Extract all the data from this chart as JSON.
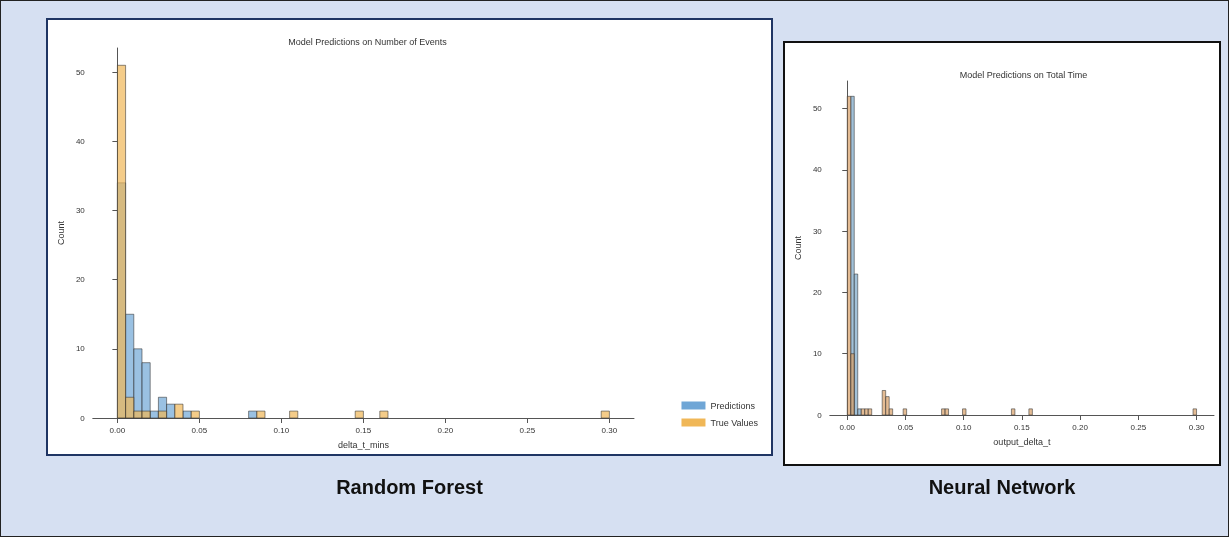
{
  "chart_data": [
    {
      "type": "histogram",
      "title": "Model Predictions on Number of Events",
      "xlabel": "delta_t_mins",
      "ylabel": "Count",
      "annotations": [
        "Random Forest"
      ],
      "xlim": [
        -0.015,
        0.315
      ],
      "xticks": [
        {
          "value": 0,
          "label": "0.00"
        },
        {
          "value": 0.05,
          "label": "0.05"
        },
        {
          "value": 0.1,
          "label": "0.10"
        },
        {
          "value": 0.15,
          "label": "0.15"
        },
        {
          "value": 0.2,
          "label": "0.20"
        },
        {
          "value": 0.25,
          "label": "0.25"
        },
        {
          "value": 0.3,
          "label": "0.30"
        }
      ],
      "ylim": [
        0,
        53.5
      ],
      "yticks": [
        0,
        10,
        20,
        30,
        40,
        50
      ],
      "legend": "bottom right",
      "bins": [
        0,
        0.005,
        0.01,
        0.015,
        0.02,
        0.025,
        0.03,
        0.035,
        0.04,
        0.045,
        0.05,
        0.055,
        0.06,
        0.065,
        0.07,
        0.075,
        0.08,
        0.085,
        0.09,
        0.095,
        0.1,
        0.105,
        0.11,
        0.115,
        0.12,
        0.125,
        0.13,
        0.135,
        0.14,
        0.145,
        0.15,
        0.155,
        0.16,
        0.165,
        0.17,
        0.175,
        0.18,
        0.185,
        0.19,
        0.195,
        0.2,
        0.205,
        0.21,
        0.215,
        0.22,
        0.225,
        0.23,
        0.235,
        0.24,
        0.245,
        0.25,
        0.255,
        0.26,
        0.265,
        0.27,
        0.275,
        0.28,
        0.285,
        0.29,
        0.295,
        0.3
      ],
      "series": [
        {
          "name": "Predictions",
          "color": "#6fa6d6",
          "values": [
            34,
            15,
            10,
            8,
            1,
            3,
            2,
            0,
            1,
            0,
            0,
            0,
            0,
            0,
            0,
            0,
            1,
            0,
            0,
            0,
            0,
            0,
            0,
            0,
            0,
            0,
            0,
            0,
            0,
            0,
            0,
            0,
            0,
            0,
            0,
            0,
            0,
            0,
            0,
            0,
            0,
            0,
            0,
            0,
            0,
            0,
            0,
            0,
            0,
            0,
            0,
            0,
            0,
            0,
            0,
            0,
            0,
            0,
            0,
            0
          ]
        },
        {
          "name": "True Values",
          "color": "#f0b757",
          "values": [
            51,
            3,
            1,
            1,
            0,
            1,
            0,
            2,
            0,
            1,
            0,
            0,
            0,
            0,
            0,
            0,
            0,
            1,
            0,
            0,
            0,
            1,
            0,
            0,
            0,
            0,
            0,
            0,
            0,
            1,
            0,
            0,
            1,
            0,
            0,
            0,
            0,
            0,
            0,
            0,
            0,
            0,
            0,
            0,
            0,
            0,
            0,
            0,
            0,
            0,
            0,
            0,
            0,
            0,
            0,
            0,
            0,
            0,
            0,
            1
          ]
        }
      ]
    },
    {
      "type": "histogram",
      "title": "Model Predictions on Total Time",
      "xlabel": "output_delta_t",
      "ylabel": "Count",
      "annotations": [
        "Neural Network"
      ],
      "xlim": [
        -0.015,
        0.315
      ],
      "xticks": [
        {
          "value": 0,
          "label": "0.00"
        },
        {
          "value": 0.05,
          "label": "0.05"
        },
        {
          "value": 0.1,
          "label": "0.10"
        },
        {
          "value": 0.15,
          "label": "0.15"
        },
        {
          "value": 0.2,
          "label": "0.20"
        },
        {
          "value": 0.25,
          "label": "0.25"
        },
        {
          "value": 0.3,
          "label": "0.30"
        }
      ],
      "ylim": [
        0,
        54.5
      ],
      "yticks": [
        0,
        10,
        20,
        30,
        40,
        50
      ],
      "bins": [
        0,
        0.003,
        0.006,
        0.009,
        0.012,
        0.015,
        0.018,
        0.021,
        0.024,
        0.027,
        0.03,
        0.033,
        0.036,
        0.039,
        0.042,
        0.045,
        0.048,
        0.051,
        0.054,
        0.057,
        0.06,
        0.063,
        0.066,
        0.069,
        0.072,
        0.075,
        0.078,
        0.081,
        0.084,
        0.087,
        0.09,
        0.093,
        0.096,
        0.099,
        0.102,
        0.105,
        0.108,
        0.111,
        0.114,
        0.117,
        0.12,
        0.123,
        0.126,
        0.129,
        0.132,
        0.135,
        0.138,
        0.141,
        0.144,
        0.147,
        0.15,
        0.153,
        0.156,
        0.159,
        0.162,
        0.165,
        0.168,
        0.171,
        0.174,
        0.177,
        0.18,
        0.183,
        0.186,
        0.189,
        0.192,
        0.195,
        0.198,
        0.201,
        0.204,
        0.207,
        0.21,
        0.213,
        0.216,
        0.219,
        0.222,
        0.225,
        0.228,
        0.231,
        0.234,
        0.237,
        0.24,
        0.243,
        0.246,
        0.249,
        0.252,
        0.255,
        0.258,
        0.261,
        0.264,
        0.267,
        0.27,
        0.273,
        0.276,
        0.279,
        0.282,
        0.285,
        0.288,
        0.291,
        0.294,
        0.297,
        0.3
      ],
      "series": [
        {
          "color": "#7aa6c8",
          "values": [
            0,
            52,
            23,
            1,
            0,
            0,
            0,
            0,
            0,
            0,
            0,
            0,
            0,
            0,
            0,
            0,
            0,
            0,
            0,
            0,
            0,
            0,
            0,
            0,
            0,
            0,
            0,
            0,
            0,
            0,
            0,
            0,
            0,
            0,
            0,
            0,
            0,
            0,
            0,
            0,
            0,
            0,
            0,
            0,
            0,
            0,
            0,
            0,
            0,
            0,
            0,
            0,
            0,
            0,
            0,
            0,
            0,
            0,
            0,
            0,
            0,
            0,
            0,
            0,
            0,
            0,
            0,
            0,
            0,
            0,
            0,
            0,
            0,
            0,
            0,
            0,
            0,
            0,
            0,
            0,
            0,
            0,
            0,
            0,
            0,
            0,
            0,
            0,
            0,
            0,
            0,
            0,
            0,
            0,
            0,
            0,
            0,
            0,
            0,
            0
          ]
        },
        {
          "color": "#d9a066",
          "values": [
            52,
            10,
            0,
            0,
            1,
            1,
            1,
            0,
            0,
            0,
            4,
            3,
            1,
            0,
            0,
            0,
            1,
            0,
            0,
            0,
            0,
            0,
            0,
            0,
            0,
            0,
            0,
            1,
            1,
            0,
            0,
            0,
            0,
            1,
            0,
            0,
            0,
            0,
            0,
            0,
            0,
            0,
            0,
            0,
            0,
            0,
            0,
            1,
            0,
            0,
            0,
            0,
            1,
            0,
            0,
            0,
            0,
            0,
            0,
            0,
            0,
            0,
            0,
            0,
            0,
            0,
            0,
            0,
            0,
            0,
            0,
            0,
            0,
            0,
            0,
            0,
            0,
            0,
            0,
            0,
            0,
            0,
            0,
            0,
            0,
            0,
            0,
            0,
            0,
            0,
            0,
            0,
            0,
            0,
            0,
            0,
            0,
            0,
            0,
            1
          ]
        }
      ]
    }
  ]
}
